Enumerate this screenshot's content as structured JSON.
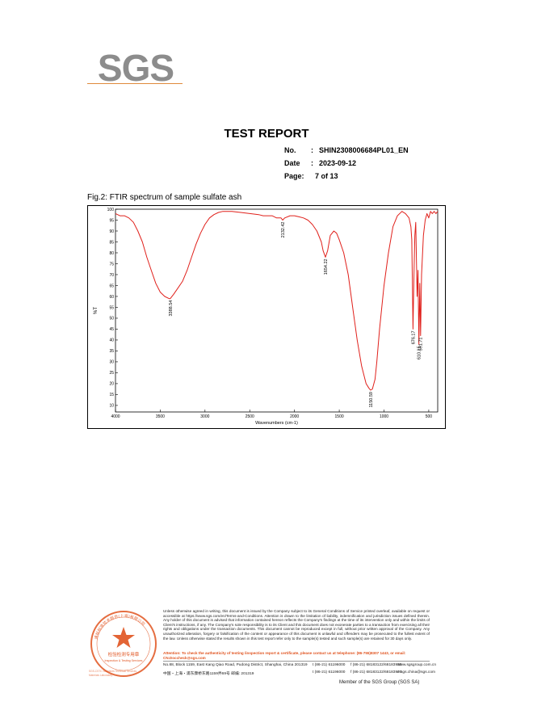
{
  "logo": {
    "text": "SGS"
  },
  "header": {
    "title": "TEST REPORT",
    "no_label": "No.",
    "no_value": "SHIN2308006684PL01_EN",
    "date_label": "Date",
    "date_value": "2023-09-12",
    "page_label": "Page:",
    "page_value": "7 of 13"
  },
  "figure": {
    "caption": "Fig.2: FTIR spectrum of sample sulfate ash"
  },
  "chart_data": {
    "type": "line",
    "xlabel": "Wavenumbers (cm-1)",
    "ylabel": "%T",
    "xlim": [
      4000,
      400
    ],
    "ylim": [
      7,
      100
    ],
    "x_ticks": [
      4000,
      3500,
      3000,
      2500,
      2000,
      1500,
      1000,
      500
    ],
    "y_ticks": [
      100,
      95,
      90,
      85,
      80,
      75,
      70,
      65,
      60,
      55,
      50,
      45,
      40,
      35,
      30,
      25,
      20,
      15,
      10
    ],
    "grid": false,
    "series_color": "#e0201b",
    "peaks": [
      {
        "x": 3388.54,
        "y": 59,
        "label": "3388.54"
      },
      {
        "x": 2132.42,
        "y": 95,
        "label": "2132.42"
      },
      {
        "x": 1654.22,
        "y": 78,
        "label": "1654.22"
      },
      {
        "x": 1150.59,
        "y": 17,
        "label": "1150.59"
      },
      {
        "x": 676.17,
        "y": 45,
        "label": "676.17"
      },
      {
        "x": 610.15,
        "y": 38,
        "label": "610.15"
      },
      {
        "x": 591.71,
        "y": 42,
        "label": "591.71"
      }
    ],
    "x": [
      4000,
      3950,
      3900,
      3850,
      3800,
      3750,
      3700,
      3650,
      3600,
      3550,
      3500,
      3450,
      3400,
      3388.54,
      3350,
      3300,
      3250,
      3200,
      3150,
      3100,
      3050,
      3000,
      2950,
      2900,
      2850,
      2800,
      2700,
      2600,
      2500,
      2400,
      2350,
      2300,
      2250,
      2200,
      2150,
      2132.42,
      2110,
      2050,
      2000,
      1950,
      1900,
      1850,
      1800,
      1750,
      1700,
      1680,
      1654.22,
      1630,
      1600,
      1560,
      1530,
      1500,
      1450,
      1400,
      1350,
      1300,
      1250,
      1200,
      1170,
      1150.59,
      1130,
      1100,
      1080,
      1050,
      1000,
      950,
      900,
      850,
      800,
      760,
      720,
      700,
      690,
      676.17,
      665,
      655,
      645,
      630,
      620,
      610.15,
      600,
      591.71,
      580,
      560,
      540,
      520,
      500,
      480,
      460,
      440,
      420,
      400
    ],
    "y": [
      98,
      97,
      97,
      96,
      94,
      90,
      85,
      78,
      72,
      66,
      62,
      60,
      59,
      59,
      61,
      64,
      67,
      72,
      78,
      84,
      89,
      93,
      96,
      97.5,
      98.5,
      99,
      99,
      98.5,
      98,
      97.5,
      97,
      97,
      97,
      96,
      96,
      95,
      96,
      97,
      97,
      96.5,
      96,
      95,
      93,
      90,
      85,
      81,
      78,
      81,
      88,
      90,
      89,
      86,
      80,
      70,
      55,
      40,
      28,
      20,
      18,
      17,
      17.5,
      22,
      30,
      45,
      65,
      80,
      92,
      97,
      99,
      98,
      96,
      92,
      86,
      45,
      70,
      88,
      94,
      60,
      72,
      38,
      66,
      42,
      70,
      88,
      95,
      98,
      96,
      99,
      98,
      99,
      98,
      99
    ]
  },
  "stamp": {
    "cn_text": "检验检测专用章",
    "en_text": "Inspection & Testing Services",
    "ring_text": "通标标准技术服务(上海)有限公司",
    "side_text": "SGS-CSTC Standards Technical Services (Shanghai) Co.,Ltd. Materials Laboratory"
  },
  "footer": {
    "disclaimer": "Unless otherwise agreed in writing, this document is issued by the Company subject to its General Conditions of Service printed overleaf, available on request or accessible at https://www.sgs.com/en/Terms-and-Conditions. Attention is drawn to the limitation of liability, indemnification and jurisdiction issues defined therein. Any holder of this document is advised that information contained hereon reflects the Company's findings at the time of its intervention only and within the limits of Client's instructions, if any. The Company's sole responsibility is to its Client and this document does not exonerate parties to a transaction from exercising all their rights and obligations under the transaction documents. This document cannot be reproduced except in full, without prior written approval of the Company. Any unauthorized alteration, forgery or falsification of the content or appearance of this document is unlawful and offenders may be prosecuted to the fullest extent of the law. Unless otherwise stated the results shown in this test report refer only to the sample(s) tested and such sample(s) are retained for 30 days only.",
    "alert": "Attention: To check the authenticity of testing /inspection report & certificate, please contact us at telephone: (86-755)8307 1443, or email: CN.Doccheck@sgs.com",
    "addr_en": "No.88, Block 1159, East Kang Qiao Road, Pudong District, Shanghai, China  201319",
    "tel_en": "t (86-21) 61196000",
    "fax_en": "f (86-21) 68183122/68183920",
    "web": "www.sgsgroup.com.cn",
    "addr_cn": "中国・上海・浦东康桥东路1159弄69号    邮编: 201319",
    "tel_cn": "t (86-21) 61196000",
    "fax_cn": "f (86-21) 68183122/68183920",
    "email": "e  sgs.china@sgs.com",
    "member": "Member of the SGS Group (SGS SA)"
  }
}
